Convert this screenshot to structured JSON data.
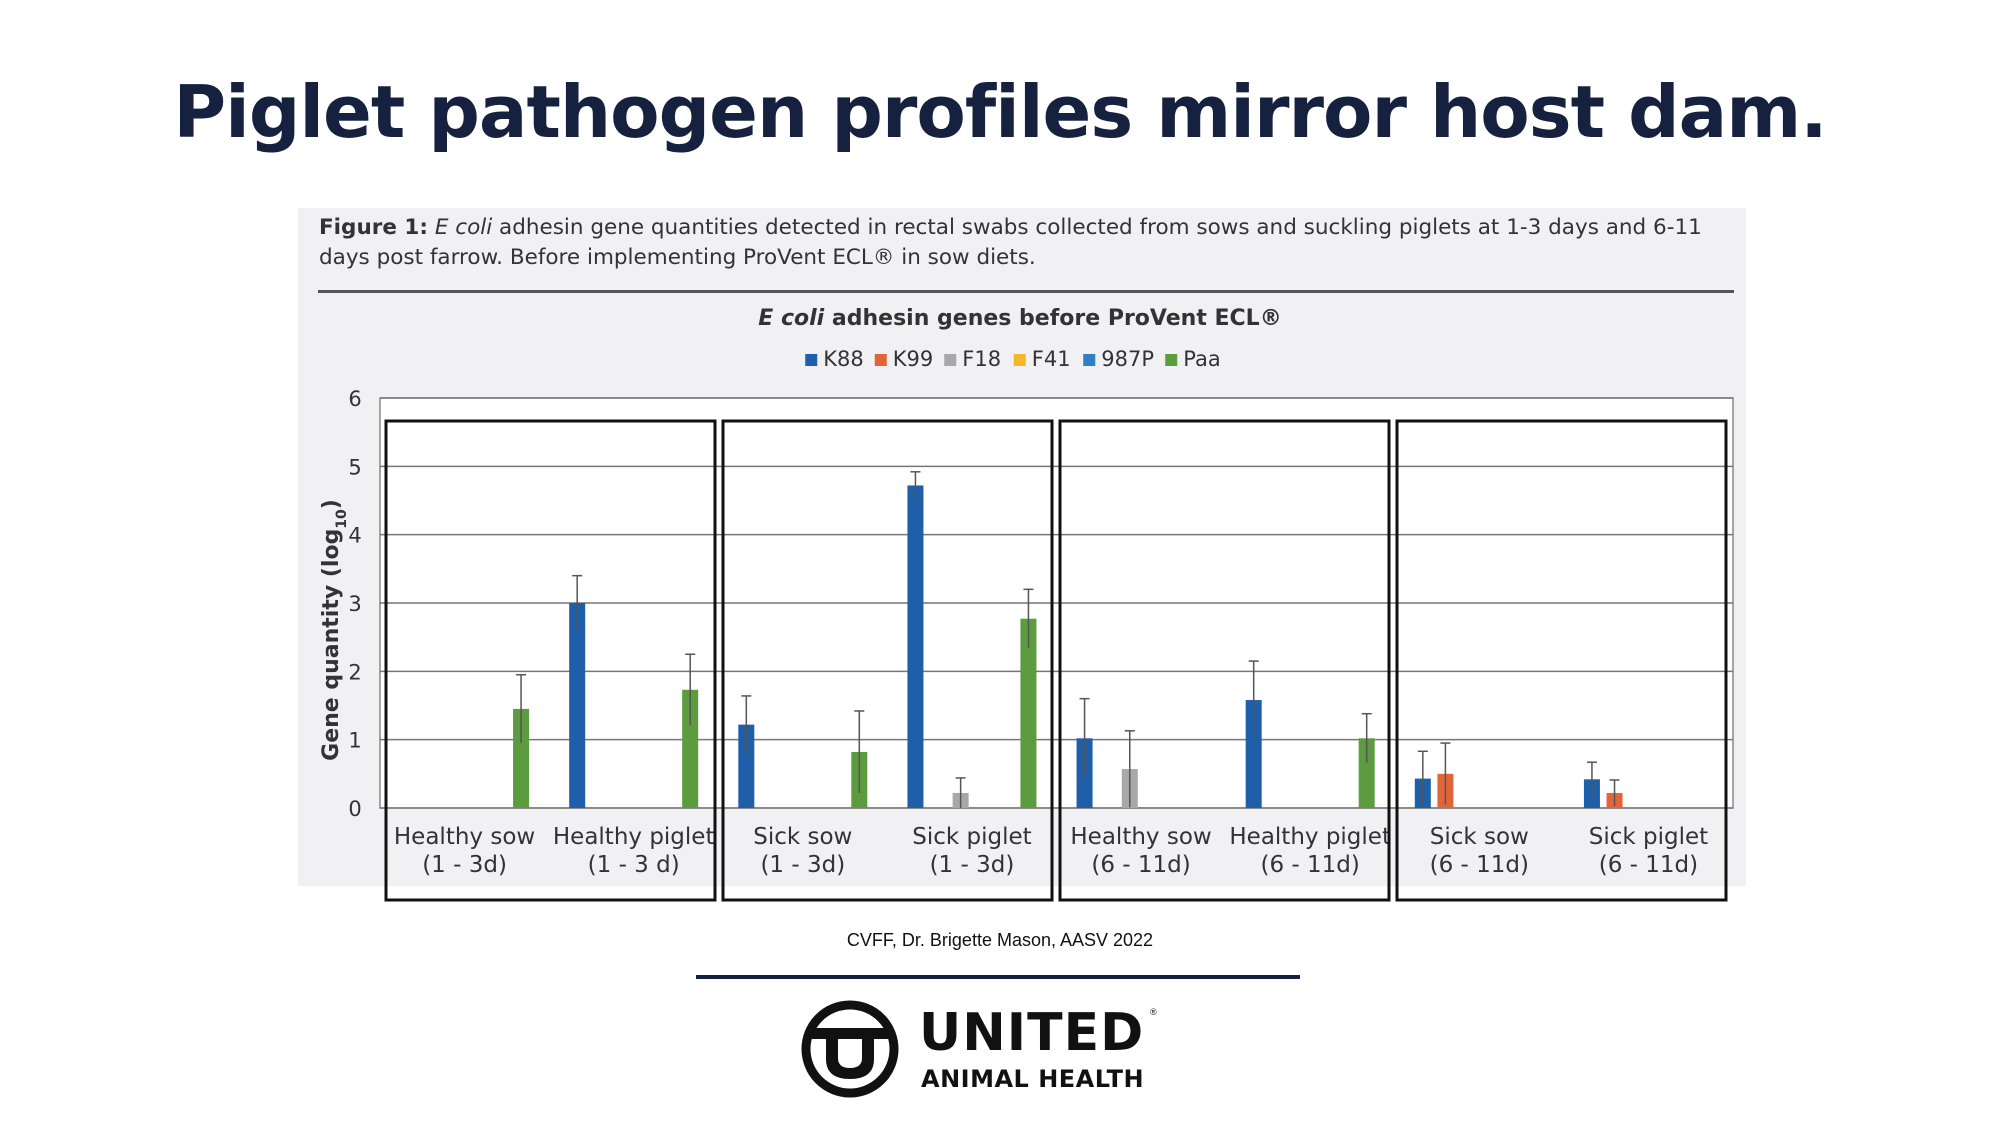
{
  "slide": {
    "title": "Piglet pathogen profiles mirror host dam.",
    "source": "CVFF, Dr. Brigette Mason, AASV 2022"
  },
  "figure": {
    "caption_label": "Figure 1:",
    "caption_italic": "E coli",
    "caption_text": "adhesin gene quantities detected in rectal swabs collected from sows and suckling piglets at 1-3 days and 6-11 days post farrow. Before implementing ProVent ECL® in sow diets."
  },
  "chart_data": {
    "type": "bar",
    "title_italic": "E coli",
    "title_rest": "adhesin genes before ProVent ECL®",
    "ylabel": "Gene quantity (log10)",
    "ylim": [
      0,
      6
    ],
    "yticks": [
      "0",
      "1",
      "2",
      "3",
      "4",
      "5",
      "6"
    ],
    "legend_position": "top-center",
    "grid": true,
    "series": [
      {
        "name": "K88",
        "color": "#1f5ea8"
      },
      {
        "name": "K99",
        "color": "#e0663a"
      },
      {
        "name": "F18",
        "color": "#a8a8a8"
      },
      {
        "name": "F41",
        "color": "#f5b62a"
      },
      {
        "name": "987P",
        "color": "#2f7fc4"
      },
      {
        "name": "Paa",
        "color": "#5c9b3e"
      }
    ],
    "categories": [
      {
        "line1": "Healthy sow",
        "line2": "(1 - 3d)",
        "bars": [
          {
            "series": "Paa",
            "value": 1.45,
            "error": 0.5
          }
        ]
      },
      {
        "line1": "Healthy piglet",
        "line2": "(1 - 3 d)",
        "bars": [
          {
            "series": "K88",
            "value": 3.0,
            "error": 0.4
          },
          {
            "series": "Paa",
            "value": 1.73,
            "error": 0.52
          }
        ]
      },
      {
        "line1": "Sick sow",
        "line2": "(1 - 3d)",
        "bars": [
          {
            "series": "K88",
            "value": 1.22,
            "error": 0.42
          },
          {
            "series": "Paa",
            "value": 0.82,
            "error": 0.6
          }
        ]
      },
      {
        "line1": "Sick piglet",
        "line2": "(1 - 3d)",
        "bars": [
          {
            "series": "K88",
            "value": 4.72,
            "error": 0.2
          },
          {
            "series": "F18",
            "value": 0.22,
            "error": 0.22
          },
          {
            "series": "Paa",
            "value": 2.77,
            "error": 0.43
          }
        ]
      },
      {
        "line1": "Healthy sow",
        "line2": "(6 - 11d)",
        "bars": [
          {
            "series": "K88",
            "value": 1.02,
            "error": 0.58
          },
          {
            "series": "F18",
            "value": 0.57,
            "error": 0.56
          }
        ]
      },
      {
        "line1": "Healthy piglet",
        "line2": "(6 - 11d)",
        "bars": [
          {
            "series": "K88",
            "value": 1.58,
            "error": 0.57
          },
          {
            "series": "Paa",
            "value": 1.02,
            "error": 0.36
          }
        ]
      },
      {
        "line1": "Sick sow",
        "line2": "(6 - 11d)",
        "bars": [
          {
            "series": "K88",
            "value": 0.43,
            "error": 0.4
          },
          {
            "series": "K99",
            "value": 0.5,
            "error": 0.45
          }
        ]
      },
      {
        "line1": "Sick piglet",
        "line2": "(6 - 11d)",
        "bars": [
          {
            "series": "K88",
            "value": 0.42,
            "error": 0.25
          },
          {
            "series": "K99",
            "value": 0.22,
            "error": 0.19
          }
        ]
      }
    ]
  },
  "brand": {
    "name": "UNITED",
    "registered": "®",
    "subtitle": "ANIMAL HEALTH"
  }
}
